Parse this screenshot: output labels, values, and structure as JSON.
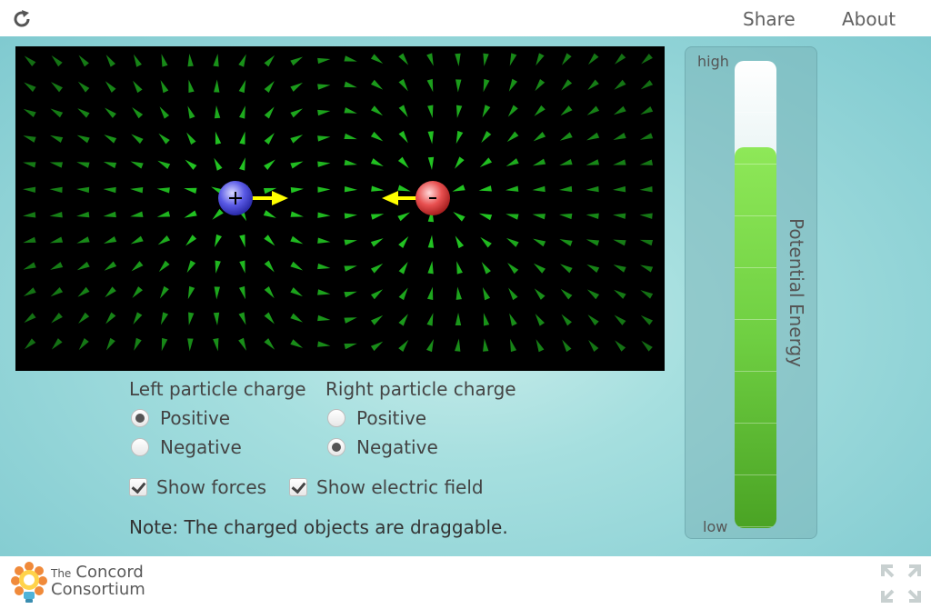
{
  "topbar": {
    "share_label": "Share",
    "about_label": "About",
    "reload_icon": "reload-icon"
  },
  "simulation": {
    "left_particle": {
      "charge": "positive",
      "color": "#4a4ae0",
      "symbol": "+"
    },
    "right_particle": {
      "charge": "negative",
      "color": "#e03a3a",
      "symbol": "-"
    },
    "field_color": "#22c322",
    "force_color": "#ffff00"
  },
  "controls": {
    "left_title": "Left particle charge",
    "right_title": "Right particle charge",
    "left_options": [
      {
        "label": "Positive",
        "selected": true
      },
      {
        "label": "Negative",
        "selected": false
      }
    ],
    "right_options": [
      {
        "label": "Positive",
        "selected": false
      },
      {
        "label": "Negative",
        "selected": true
      }
    ],
    "show_forces": {
      "label": "Show forces",
      "checked": true
    },
    "show_field": {
      "label": "Show electric field",
      "checked": true
    },
    "note": "Note: The charged objects are draggable."
  },
  "potential_energy": {
    "label": "Potential Energy",
    "high_label": "high",
    "low_label": "low",
    "level_fraction": 0.815
  },
  "footer": {
    "logo_line1": "The",
    "logo_line1b": "Concord",
    "logo_line2": "Consortium",
    "fullscreen_icon": "fullscreen-icon"
  }
}
